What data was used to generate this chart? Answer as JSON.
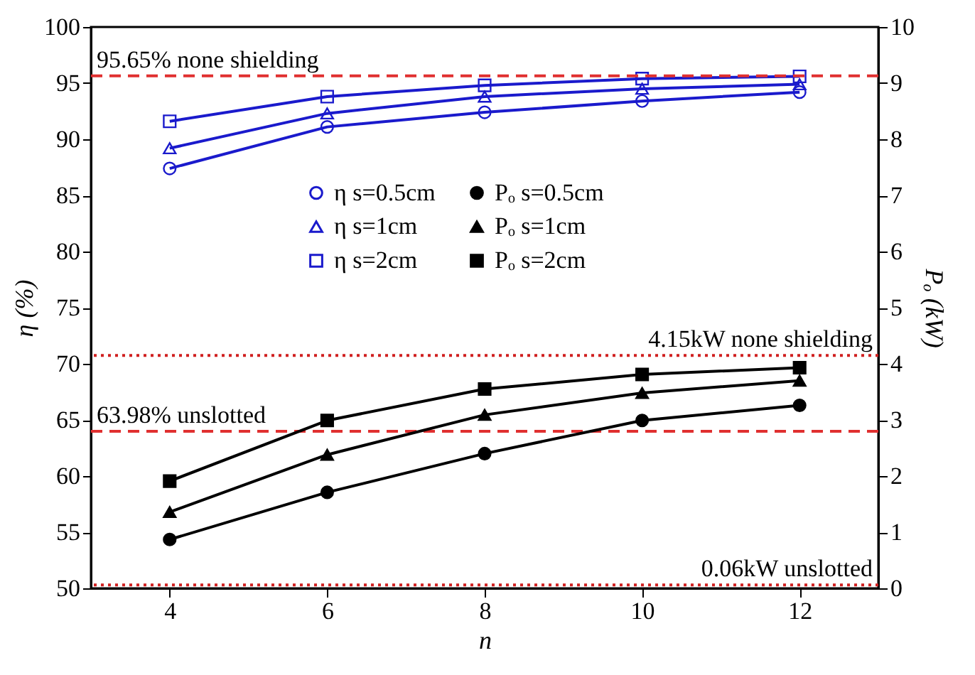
{
  "chart_data": {
    "type": "line",
    "xlabel": "n",
    "ylabel": "η (%)",
    "y2label": "Pₒ (kW)",
    "x": [
      4,
      6,
      8,
      10,
      12
    ],
    "series": [
      {
        "name": "η s=0.5cm",
        "color": "#1a1acc",
        "marker": "circle",
        "values": [
          87.4,
          91.1,
          92.4,
          93.4,
          94.2
        ]
      },
      {
        "name": "η s=1cm",
        "color": "#1a1acc",
        "marker": "triangle",
        "values": [
          89.2,
          92.3,
          93.8,
          94.5,
          94.9
        ]
      },
      {
        "name": "η s=2cm",
        "color": "#1a1acc",
        "marker": "square",
        "values": [
          91.6,
          93.8,
          94.8,
          95.4,
          95.6
        ]
      },
      {
        "name": "Pₒ s=0.5cm",
        "color": "#000000",
        "marker": "circle",
        "axis": "y2",
        "values": [
          0.87,
          1.71,
          2.4,
          2.99,
          3.26
        ]
      },
      {
        "name": "Pₒ s=1cm",
        "color": "#000000",
        "marker": "triangle",
        "axis": "y2",
        "values": [
          1.36,
          2.38,
          3.09,
          3.48,
          3.7
        ]
      },
      {
        "name": "Pₒ s=2cm",
        "color": "#000000",
        "marker": "square",
        "axis": "y2",
        "values": [
          1.91,
          2.99,
          3.55,
          3.81,
          3.93
        ]
      }
    ],
    "xlim": [
      3,
      13
    ],
    "xticks": [
      4,
      6,
      8,
      10,
      12
    ],
    "ylim": [
      50,
      100
    ],
    "yticks": [
      50,
      55,
      60,
      65,
      70,
      75,
      80,
      85,
      90,
      95,
      100
    ],
    "y2lim": [
      0,
      10
    ],
    "y2ticks": [
      0,
      1,
      2,
      3,
      4,
      5,
      6,
      7,
      8,
      9,
      10
    ],
    "ref_lines": [
      {
        "axis": "y",
        "value": 95.65,
        "label": "95.65% none shielding",
        "color": "#e03030",
        "line_style": "dashed"
      },
      {
        "axis": "y",
        "value": 63.98,
        "label": "63.98% unslotted",
        "color": "#e03030",
        "line_style": "dashed"
      },
      {
        "axis": "y2",
        "value": 4.15,
        "label": "4.15kW none shielding",
        "color": "#d02020",
        "line_style": "dotted"
      },
      {
        "axis": "y2",
        "value": 0.06,
        "label": "0.06kW unslotted",
        "color": "#d02020",
        "line_style": "dotted"
      }
    ],
    "legend": "top right",
    "grid": false
  }
}
